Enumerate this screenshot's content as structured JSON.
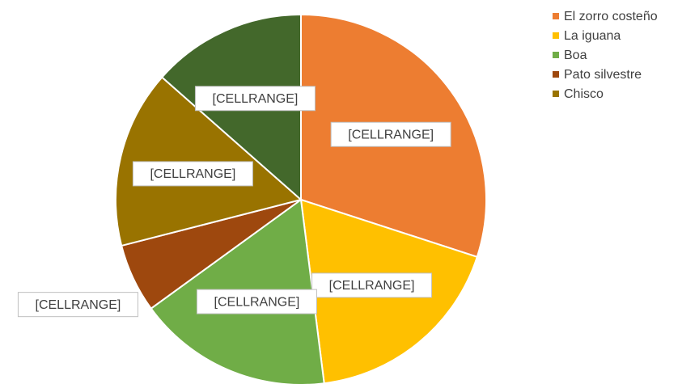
{
  "chart_data": {
    "type": "pie",
    "categories": [
      "El zorro costeño",
      "La iguana",
      "Boa",
      "Pato silvestre",
      "Chisco",
      null
    ],
    "values": [
      30,
      18,
      17,
      6,
      15.5,
      13.5
    ],
    "value_labels": [
      "[CELLRANGE]",
      "[CELLRANGE]",
      "[CELLRANGE]",
      "[CELLRANGE]",
      "[CELLRANGE]",
      "[CELLRANGE]"
    ],
    "colors": [
      "#ED7D31",
      "#FFC000",
      "#70AD47",
      "#9E480E",
      "#997300",
      "#43682B"
    ],
    "legend": "right"
  }
}
